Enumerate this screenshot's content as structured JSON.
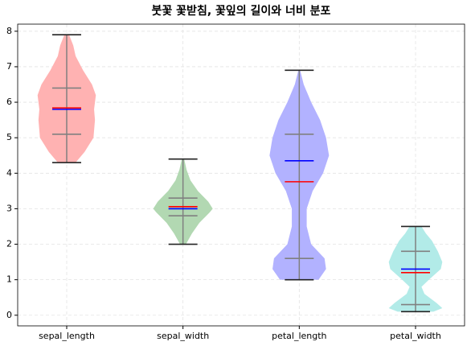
{
  "chart_data": {
    "type": "violin",
    "title": "붓꽃 꽃받침, 꽃잎의 길이와 너비 분포",
    "categories": [
      "sepal_length",
      "sepal_width",
      "petal_length",
      "petal_width"
    ],
    "violins": [
      {
        "color": "#ffb2b2",
        "min": 4.3,
        "q1": 5.1,
        "median": 5.8,
        "mean": 5.84,
        "q3": 6.4,
        "max": 7.9,
        "kde_y": [
          4.3,
          4.6,
          5.0,
          5.5,
          5.8,
          6.2,
          6.5,
          6.9,
          7.3,
          7.6,
          7.9
        ],
        "kde_width": [
          0.3,
          0.6,
          0.9,
          0.95,
          0.92,
          0.98,
          0.85,
          0.55,
          0.3,
          0.22,
          0.08
        ]
      },
      {
        "color": "#b2d8b2",
        "min": 2.0,
        "q1": 2.8,
        "median": 3.0,
        "mean": 3.06,
        "q3": 3.3,
        "max": 4.4,
        "kde_y": [
          2.0,
          2.3,
          2.6,
          2.9,
          3.0,
          3.2,
          3.5,
          3.8,
          4.1,
          4.4
        ],
        "kde_width": [
          0.1,
          0.3,
          0.55,
          0.9,
          1.0,
          0.85,
          0.5,
          0.25,
          0.12,
          0.04
        ]
      },
      {
        "color": "#b2b2ff",
        "min": 1.0,
        "q1": 1.6,
        "median": 4.35,
        "mean": 3.76,
        "q3": 5.1,
        "max": 6.9,
        "kde_y": [
          1.0,
          1.3,
          1.6,
          2.0,
          2.5,
          3.0,
          3.5,
          4.0,
          4.5,
          5.0,
          5.5,
          6.0,
          6.5,
          6.9
        ],
        "kde_width": [
          0.65,
          0.9,
          0.85,
          0.4,
          0.25,
          0.25,
          0.45,
          0.8,
          1.0,
          0.9,
          0.7,
          0.4,
          0.15,
          0.03
        ]
      },
      {
        "color": "#b2ebe8",
        "min": 0.1,
        "q1": 0.3,
        "median": 1.3,
        "mean": 1.2,
        "q3": 1.8,
        "max": 2.5,
        "kde_y": [
          0.1,
          0.2,
          0.35,
          0.6,
          0.8,
          1.0,
          1.3,
          1.5,
          1.8,
          2.1,
          2.3,
          2.5
        ],
        "kde_width": [
          0.6,
          0.9,
          0.7,
          0.3,
          0.2,
          0.45,
          0.85,
          0.9,
          0.75,
          0.55,
          0.35,
          0.2
        ]
      }
    ],
    "mean_color": "#ff0000",
    "median_color": "#0000ff",
    "quartile_color": "#808080",
    "extreme_color": "#222222",
    "ylim": [
      -0.3,
      8.2
    ],
    "yticks": [
      0,
      1,
      2,
      3,
      4,
      5,
      6,
      7,
      8
    ],
    "grid": true
  }
}
